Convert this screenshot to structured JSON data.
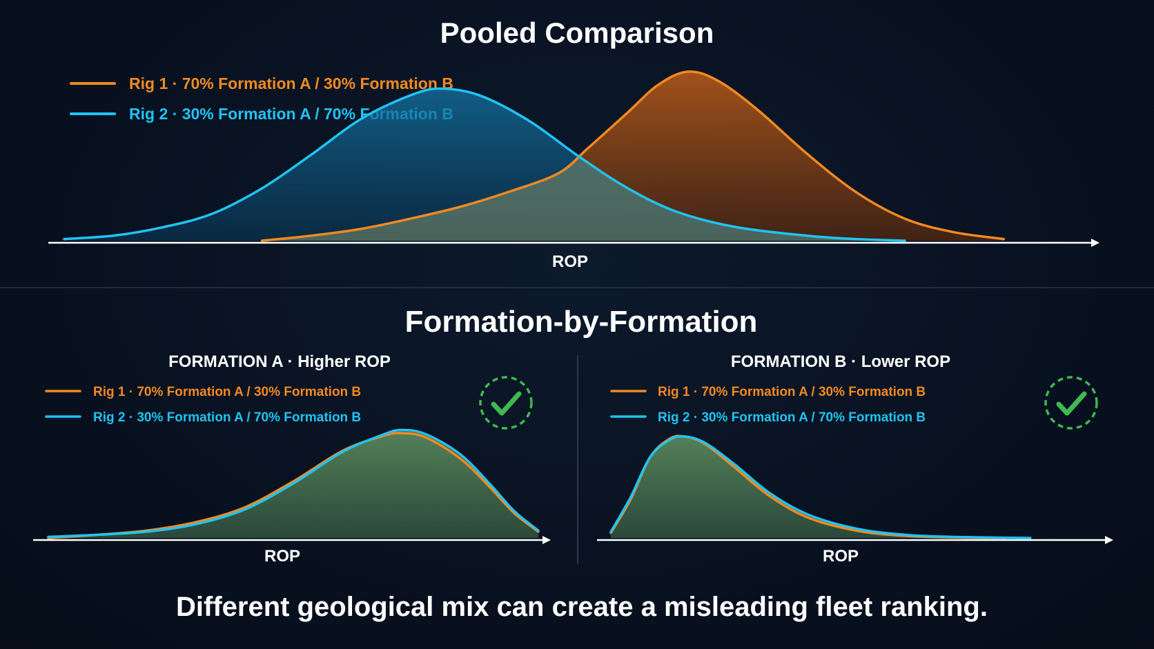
{
  "colors": {
    "rig1": "#f28a22",
    "rig2": "#1fc4f4",
    "rig1_fill": "#c25a12",
    "rig2_fill": "#0f6a9a",
    "overlap_fill": "#4d7a58",
    "check": "#3fb950",
    "axis": "#ffffff",
    "divider": "#3a4556"
  },
  "footer": {
    "message": "Different geological mix can create a misleading fleet ranking."
  },
  "chart_data": [
    {
      "id": "pooled",
      "type": "area",
      "title": "Pooled Comparison",
      "xlabel": "ROP",
      "ylabel": "",
      "grid": false,
      "legend_position": "top-left",
      "series": [
        {
          "name": "Rig 1 · 70% Formation A / 30% Formation B",
          "label_rig": "Rig 1",
          "label_mix": "70% Formation A / 30% Formation B",
          "color_key": "rig1",
          "points": [
            [
              0.2,
              0.0
            ],
            [
              0.25,
              0.03
            ],
            [
              0.3,
              0.07
            ],
            [
              0.35,
              0.13
            ],
            [
              0.4,
              0.2
            ],
            [
              0.45,
              0.29
            ],
            [
              0.5,
              0.4
            ],
            [
              0.53,
              0.55
            ],
            [
              0.57,
              0.76
            ],
            [
              0.6,
              0.92
            ],
            [
              0.63,
              1.0
            ],
            [
              0.66,
              0.95
            ],
            [
              0.7,
              0.78
            ],
            [
              0.75,
              0.52
            ],
            [
              0.8,
              0.29
            ],
            [
              0.85,
              0.13
            ],
            [
              0.9,
              0.05
            ],
            [
              0.95,
              0.01
            ]
          ]
        },
        {
          "name": "Rig 2 · 30% Formation A / 70% Formation B",
          "label_rig": "Rig 2",
          "label_mix": "30% Formation A / 70% Formation B",
          "color_key": "rig2",
          "points": [
            [
              0.0,
              0.01
            ],
            [
              0.05,
              0.03
            ],
            [
              0.1,
              0.08
            ],
            [
              0.15,
              0.16
            ],
            [
              0.2,
              0.31
            ],
            [
              0.25,
              0.51
            ],
            [
              0.3,
              0.72
            ],
            [
              0.35,
              0.86
            ],
            [
              0.38,
              0.9
            ],
            [
              0.42,
              0.86
            ],
            [
              0.47,
              0.71
            ],
            [
              0.52,
              0.5
            ],
            [
              0.57,
              0.31
            ],
            [
              0.62,
              0.17
            ],
            [
              0.68,
              0.08
            ],
            [
              0.75,
              0.03
            ],
            [
              0.8,
              0.01
            ],
            [
              0.85,
              0.0
            ]
          ]
        }
      ]
    },
    {
      "id": "formation-a",
      "type": "area",
      "title": "FORMATION A · Higher ROP",
      "title_main": "FORMATION A",
      "title_sub": "Higher ROP",
      "section_title": "Formation-by-Formation",
      "xlabel": "ROP",
      "ylabel": "",
      "grid": false,
      "legend_position": "top-left",
      "check": true,
      "series": [
        {
          "name": "Rig 1 · 70% Formation A / 30% Formation B",
          "label_rig": "Rig 1",
          "label_mix": "70% Formation A / 30% Formation B",
          "color_key": "rig1",
          "points": [
            [
              0.0,
              0.0
            ],
            [
              0.1,
              0.03
            ],
            [
              0.2,
              0.07
            ],
            [
              0.3,
              0.15
            ],
            [
              0.4,
              0.29
            ],
            [
              0.5,
              0.54
            ],
            [
              0.6,
              0.83
            ],
            [
              0.68,
              0.97
            ],
            [
              0.72,
              1.0
            ],
            [
              0.77,
              0.96
            ],
            [
              0.84,
              0.76
            ],
            [
              0.9,
              0.49
            ],
            [
              0.95,
              0.24
            ],
            [
              1.0,
              0.06
            ]
          ]
        },
        {
          "name": "Rig 2 · 30% Formation A / 70% Formation B",
          "label_rig": "Rig 2",
          "label_mix": "30% Formation A / 70% Formation B",
          "color_key": "rig2",
          "points": [
            [
              0.0,
              0.01
            ],
            [
              0.1,
              0.03
            ],
            [
              0.2,
              0.06
            ],
            [
              0.3,
              0.13
            ],
            [
              0.4,
              0.27
            ],
            [
              0.5,
              0.52
            ],
            [
              0.6,
              0.82
            ],
            [
              0.68,
              0.98
            ],
            [
              0.72,
              1.03
            ],
            [
              0.77,
              0.99
            ],
            [
              0.84,
              0.8
            ],
            [
              0.9,
              0.52
            ],
            [
              0.95,
              0.26
            ],
            [
              1.0,
              0.07
            ]
          ]
        }
      ]
    },
    {
      "id": "formation-b",
      "type": "area",
      "title": "FORMATION B · Lower ROP",
      "title_main": "FORMATION B",
      "title_sub": "Lower ROP",
      "xlabel": "ROP",
      "ylabel": "",
      "grid": false,
      "legend_position": "top-left",
      "check": true,
      "series": [
        {
          "name": "Rig 1 · 70% Formation A / 30% Formation B",
          "label_rig": "Rig 1",
          "label_mix": "70% Formation A / 30% Formation B",
          "color_key": "rig1",
          "points": [
            [
              0.0,
              0.05
            ],
            [
              0.04,
              0.38
            ],
            [
              0.08,
              0.8
            ],
            [
              0.12,
              0.98
            ],
            [
              0.15,
              1.0
            ],
            [
              0.19,
              0.93
            ],
            [
              0.25,
              0.7
            ],
            [
              0.32,
              0.42
            ],
            [
              0.4,
              0.2
            ],
            [
              0.5,
              0.07
            ],
            [
              0.6,
              0.02
            ],
            [
              0.7,
              0.005
            ],
            [
              0.8,
              0.0
            ]
          ]
        },
        {
          "name": "Rig 2 · 30% Formation A / 70% Formation B",
          "label_rig": "Rig 2",
          "label_mix": "30% Formation A / 70% Formation B",
          "color_key": "rig2",
          "points": [
            [
              0.0,
              0.06
            ],
            [
              0.04,
              0.4
            ],
            [
              0.08,
              0.8
            ],
            [
              0.12,
              0.97
            ],
            [
              0.15,
              1.0
            ],
            [
              0.19,
              0.94
            ],
            [
              0.25,
              0.73
            ],
            [
              0.32,
              0.45
            ],
            [
              0.4,
              0.23
            ],
            [
              0.5,
              0.09
            ],
            [
              0.6,
              0.03
            ],
            [
              0.7,
              0.01
            ],
            [
              0.85,
              0.0
            ]
          ]
        }
      ]
    }
  ]
}
